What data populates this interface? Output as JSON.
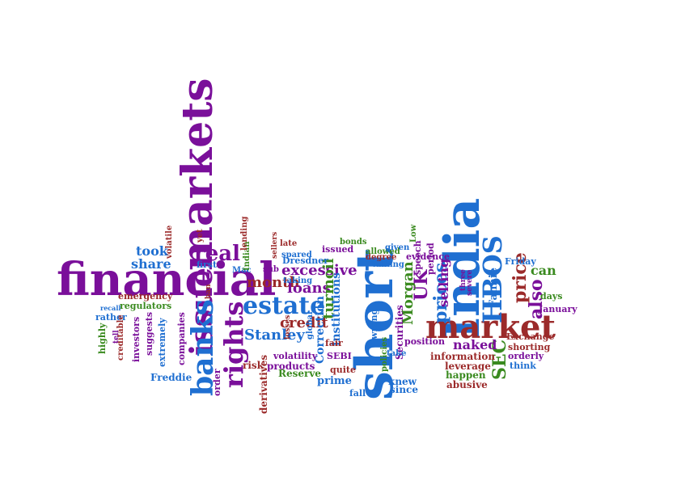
{
  "colors": {
    "purple": "#7a0f9a",
    "blue": "#1f6fd1",
    "red": "#9b2a2a",
    "green": "#3a8a1f"
  },
  "words": {
    "financial": "financial",
    "markets": "markets",
    "short": "short",
    "india": "India",
    "market": "market",
    "issue": "issue",
    "banks": "banks",
    "rights": "rights",
    "estate": "estate",
    "hbos": "HBOS",
    "real": "real",
    "prices": "prices",
    "price": "price",
    "also": "also",
    "sec": "SEC",
    "uk": "UK",
    "morgan": "Morgan",
    "stanley": "Stanley",
    "credit": "credit",
    "month": "month",
    "loans": "loans",
    "excessive": "excessive",
    "turmoil": "turmoil",
    "naked": "naked",
    "selling": "selling",
    "share": "share",
    "took": "took",
    "can": "can",
    "fannie": "Fannie",
    "friday": "Friday",
    "january": "January",
    "days": "days",
    "institutions": "institutions",
    "correction": "Correction",
    "securities": "Securities",
    "information": "information",
    "leverage": "leverage",
    "exchange": "Exchange",
    "orderly": "orderly",
    "shorting": "shorting",
    "happen": "happen",
    "abusive": "abusive",
    "think": "think",
    "knew": "knew",
    "since": "since",
    "fall": "fall",
    "prime": "prime",
    "reserve": "Reserve",
    "products": "products",
    "volatility": "volatility",
    "risk": "risk",
    "derivatives": "derivatives",
    "order": "order",
    "freddie": "Freddie",
    "companies": "companies",
    "extremely": "extremely",
    "suggests": "suggests",
    "investors": "investors",
    "regulators": "regulators",
    "emergency": "emergency",
    "rather": "rather",
    "highly": "highly",
    "creditable": "creditable",
    "volatile": "volatile",
    "first": "first",
    "mac": "Mac",
    "indian": "Indian",
    "lending": "lending",
    "sub": "sub",
    "dresdner": "Dresdner",
    "taking": "taking",
    "spared": "spared",
    "late": "late",
    "sellers": "sellers",
    "global": "global",
    "fair": "fair",
    "sebi": "SEBI",
    "wrong": "wrong",
    "quite": "quite",
    "policies": "policies",
    "take": "take",
    "position": "position",
    "speech": "speech",
    "period": "period",
    "degree": "degree",
    "evidence": "evidence",
    "allowed": "allowed",
    "issued": "issued",
    "talking": "talking",
    "given": "given",
    "low": "Low",
    "bonds": "bonds",
    "yet": "yet",
    "losses": "losses",
    "three": "three",
    "severe": "severe",
    "ban": "ban",
    "tell": "tell",
    "recall": "recall"
  }
}
